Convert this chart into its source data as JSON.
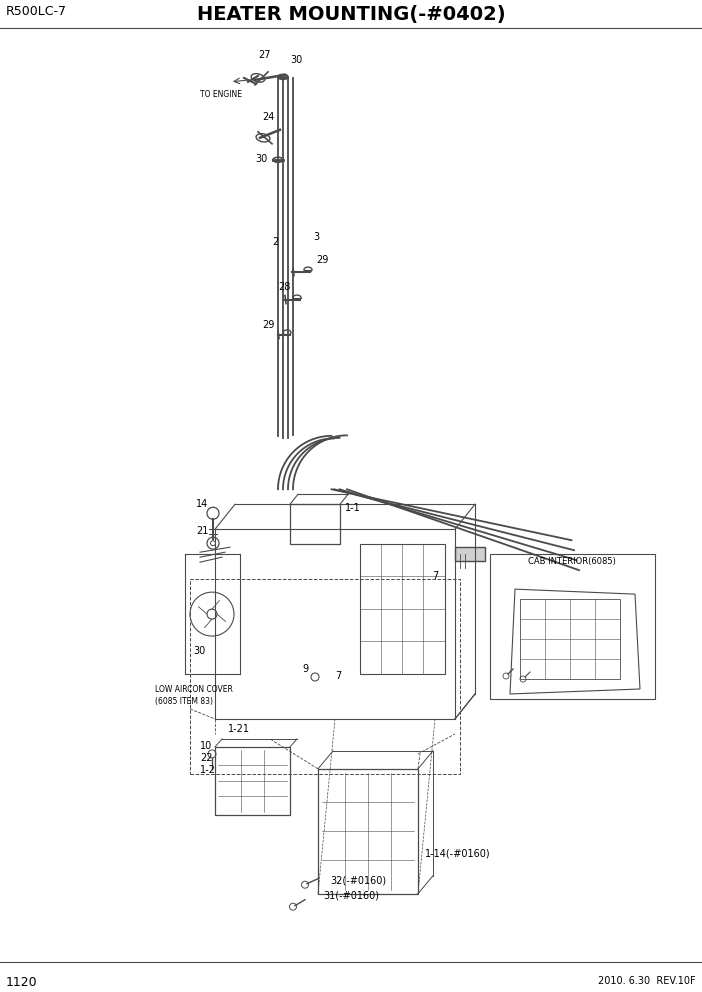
{
  "title_left": "R500LC-7",
  "title_center": "HEATER MOUNTING(-#0402)",
  "page_number": "1120",
  "revision": "2010. 6.30  REV.10F",
  "background_color": "#ffffff",
  "line_color": "#4a4a4a",
  "text_color": "#000000",
  "fig_width": 7.02,
  "fig_height": 9.92,
  "dpi": 100
}
